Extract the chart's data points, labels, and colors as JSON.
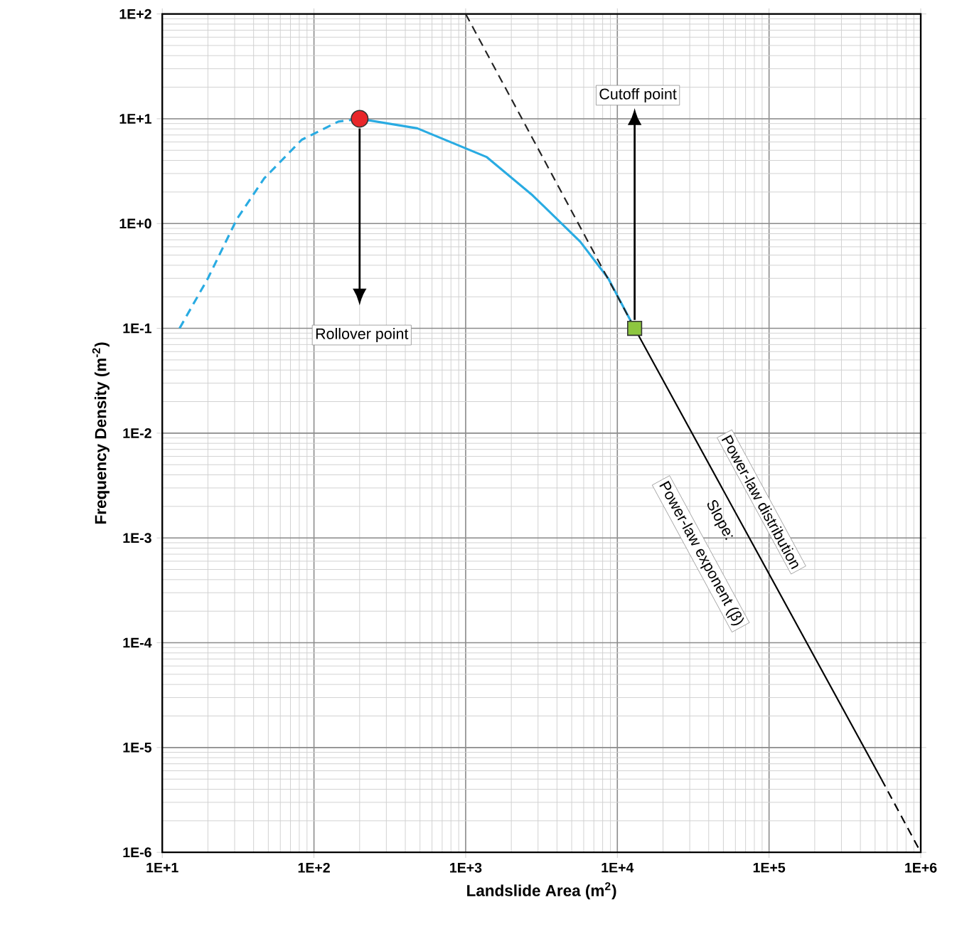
{
  "chart_data": {
    "type": "line",
    "xlabel": "Landslide Area (m$^{2}$)",
    "ylabel": "Frequency Density (m$^{-2}$)",
    "log": "xy",
    "grid": true,
    "xlim": [
      10,
      1000000
    ],
    "ylim": [
      1e-06,
      100
    ],
    "xticks": [
      {
        "value": 10,
        "label": "1E+1"
      },
      {
        "value": 100,
        "label": "1E+2"
      },
      {
        "value": 1000,
        "label": "1E+3"
      },
      {
        "value": 10000,
        "label": "1E+4"
      },
      {
        "value": 100000,
        "label": "1E+5"
      },
      {
        "value": 1000000,
        "label": "1E+6"
      }
    ],
    "yticks": [
      {
        "value": 1e-06,
        "label": "1E-6"
      },
      {
        "value": 1e-05,
        "label": "1E-5"
      },
      {
        "value": 0.0001,
        "label": "1E-4"
      },
      {
        "value": 0.001,
        "label": "1E-3"
      },
      {
        "value": 0.01,
        "label": "1E-2"
      },
      {
        "value": 0.1,
        "label": "1E-1"
      },
      {
        "value": 1,
        "label": "1E+0"
      },
      {
        "value": 10,
        "label": "1E+1"
      },
      {
        "value": 100,
        "label": "1E+2"
      }
    ],
    "series": [
      {
        "color": "#29abe2",
        "line_style": "dashed",
        "x": [
          13,
          20,
          31,
          47,
          83,
          145,
          200
        ],
        "values": [
          0.1,
          0.3,
          1.1,
          2.7,
          6.3,
          9.4,
          10
        ]
      },
      {
        "color": "#29abe2",
        "line_style": "solid",
        "x": [
          200,
          480,
          1380,
          2760,
          5700,
          8700,
          13000
        ],
        "values": [
          10,
          8.1,
          4.3,
          1.86,
          0.67,
          0.3,
          0.1
        ]
      },
      {
        "color": "#222222",
        "line_style": "dashed",
        "x": [
          1000,
          13000
        ],
        "values": [
          100,
          0.1
        ]
      },
      {
        "color": "#000000",
        "line_style": "solid",
        "x": [
          13000,
          550000
        ],
        "values": [
          0.1,
          5e-06
        ]
      },
      {
        "color": "#000000",
        "line_style": "dashed",
        "x": [
          550000,
          1000000
        ],
        "values": [
          5e-06,
          1e-06
        ]
      },
      {
        "type": "scatter",
        "color": "#e8262a",
        "marker": "circle",
        "x": [
          200
        ],
        "values": [
          10
        ]
      },
      {
        "type": "scatter",
        "color": "#8dc63f",
        "marker": "square",
        "x": [
          13000
        ],
        "values": [
          0.1
        ]
      }
    ],
    "annotations": [
      "Rollover point",
      "Cutoff point",
      "Power-law distribution",
      "Slope:",
      "Power-law exponent (β)"
    ]
  }
}
